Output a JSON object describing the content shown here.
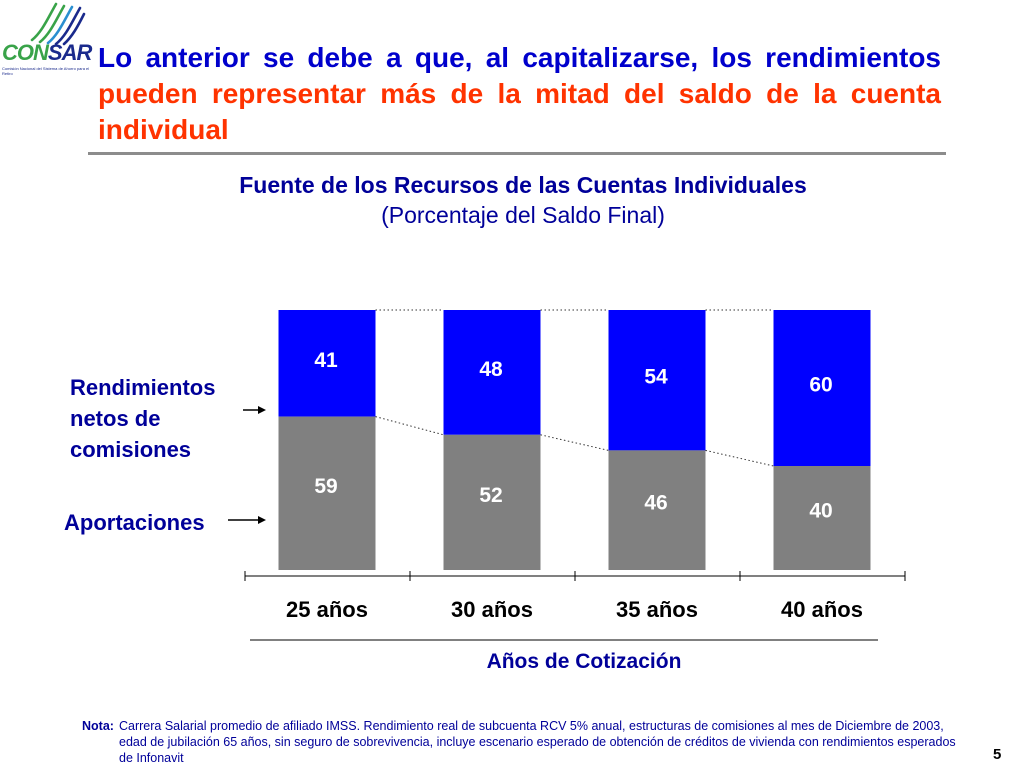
{
  "logo": {
    "text_part1": "CON",
    "text_part2": "SAR",
    "subtitle": "Comisión Nacional del Sistema de Ahorro para el Retiro"
  },
  "headline": {
    "part_blue": "Lo anterior se debe a que, al capitalizarse, los rendimientos ",
    "part_red": "pueden representar más de la mitad del saldo de la cuenta individual"
  },
  "series_labels": {
    "rendimientos": "Rendimientos netos de comisiones",
    "aportaciones": "Aportaciones"
  },
  "colors": {
    "blue": "#0000ff",
    "gray": "#808080",
    "title_blue": "#000099",
    "headline_blue": "#0000cc",
    "headline_red": "#ff3300"
  },
  "chart_data": {
    "type": "bar",
    "stacked": true,
    "title": "Fuente de los Recursos de las Cuentas Individuales",
    "subtitle": "(Porcentaje del Saldo Final)",
    "xlabel": "Años de Cotización",
    "categories": [
      "25 años",
      "30 años",
      "35 años",
      "40 años"
    ],
    "series": [
      {
        "name": "Aportaciones",
        "values": [
          59,
          52,
          46,
          40
        ],
        "color": "#808080"
      },
      {
        "name": "Rendimientos netos de comisiones",
        "values": [
          41,
          48,
          54,
          60
        ],
        "color": "#0000ff"
      }
    ],
    "ylim": [
      0,
      100
    ],
    "grid": false,
    "legend": "left"
  },
  "note": {
    "label": "Nota:",
    "text": "Carrera Salarial promedio de afiliado IMSS. Rendimiento real de subcuenta RCV 5% anual, estructuras de comisiones al mes de Diciembre de 2003, edad de jubilación 65 años, sin seguro de sobrevivencia, incluye escenario esperado de obtención de créditos de vivienda con rendimientos esperados de Infonavit"
  },
  "page_number": "5"
}
